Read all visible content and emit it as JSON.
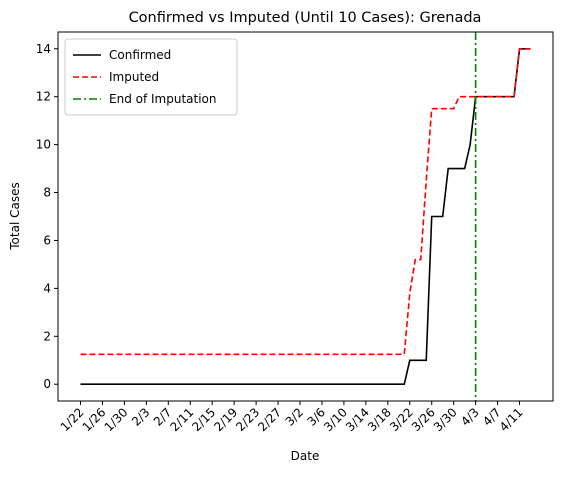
{
  "chart_data": {
    "type": "line",
    "title": "Confirmed vs Imputed (Until 10 Cases): Grenada",
    "xlabel": "Date",
    "ylabel": "Total Cases",
    "categories": [
      "1/22",
      null,
      null,
      null,
      "1/26",
      null,
      null,
      null,
      "1/30",
      null,
      null,
      null,
      "2/3",
      null,
      null,
      null,
      "2/7",
      null,
      null,
      null,
      "2/11",
      null,
      null,
      null,
      "2/15",
      null,
      null,
      null,
      "2/19",
      null,
      null,
      null,
      "2/23",
      null,
      null,
      null,
      "2/27",
      null,
      null,
      null,
      "3/2",
      null,
      null,
      null,
      "3/6",
      null,
      null,
      null,
      "3/10",
      null,
      null,
      null,
      "3/14",
      null,
      null,
      null,
      "3/18",
      null,
      null,
      null,
      "3/22",
      null,
      null,
      null,
      "3/26",
      null,
      null,
      null,
      "3/30",
      null,
      null,
      null,
      "4/3",
      null,
      null,
      null,
      "4/7",
      null,
      null,
      null,
      "4/11",
      null,
      null
    ],
    "series": [
      {
        "name": "Confirmed",
        "color": "#000000",
        "dash": "solid",
        "values": [
          0,
          0,
          0,
          0,
          0,
          0,
          0,
          0,
          0,
          0,
          0,
          0,
          0,
          0,
          0,
          0,
          0,
          0,
          0,
          0,
          0,
          0,
          0,
          0,
          0,
          0,
          0,
          0,
          0,
          0,
          0,
          0,
          0,
          0,
          0,
          0,
          0,
          0,
          0,
          0,
          0,
          0,
          0,
          0,
          0,
          0,
          0,
          0,
          0,
          0,
          0,
          0,
          0,
          0,
          0,
          0,
          0,
          0,
          0,
          0,
          1,
          1,
          1,
          1,
          7,
          7,
          7,
          9,
          9,
          9,
          9,
          10,
          12,
          12,
          12,
          12,
          12,
          12,
          12,
          12,
          14,
          14,
          14
        ]
      },
      {
        "name": "Imputed",
        "color": "#ff0000",
        "dash": "dashed",
        "values": [
          1.25,
          1.25,
          1.25,
          1.25,
          1.25,
          1.25,
          1.25,
          1.25,
          1.25,
          1.25,
          1.25,
          1.25,
          1.25,
          1.25,
          1.25,
          1.25,
          1.25,
          1.25,
          1.25,
          1.25,
          1.25,
          1.25,
          1.25,
          1.25,
          1.25,
          1.25,
          1.25,
          1.25,
          1.25,
          1.25,
          1.25,
          1.25,
          1.25,
          1.25,
          1.25,
          1.25,
          1.25,
          1.25,
          1.25,
          1.25,
          1.25,
          1.25,
          1.25,
          1.25,
          1.25,
          1.25,
          1.25,
          1.25,
          1.25,
          1.25,
          1.25,
          1.25,
          1.25,
          1.25,
          1.25,
          1.25,
          1.25,
          1.25,
          1.25,
          1.25,
          3.8,
          5.2,
          5.2,
          8.5,
          11.5,
          11.5,
          11.5,
          11.5,
          11.5,
          12,
          12,
          12,
          12,
          12,
          12,
          12,
          12,
          12,
          12,
          12,
          14,
          14,
          14
        ]
      }
    ],
    "vline": {
      "name": "End of Imputation",
      "category": "4/3",
      "color": "#008000",
      "dash": "dashdot"
    },
    "ylim": [
      -0.7,
      14.7
    ],
    "yticks": [
      0,
      2,
      4,
      6,
      8,
      10,
      12,
      14
    ],
    "legend": "upper left",
    "grid": false
  }
}
